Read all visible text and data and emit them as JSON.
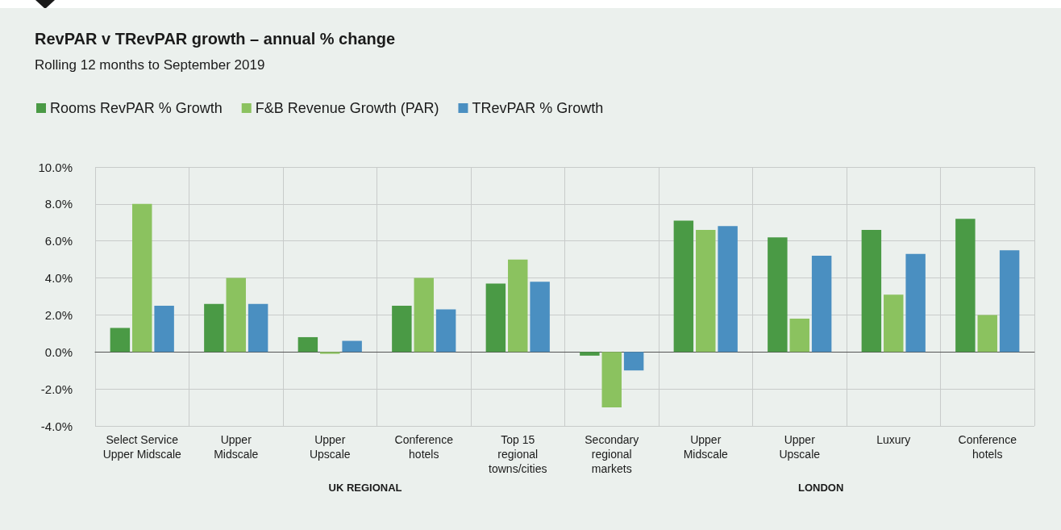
{
  "chart_data": {
    "type": "bar",
    "title": "RevPAR v TRevPAR growth – annual % change",
    "subtitle": "Rolling 12 months to September 2019",
    "categories": [
      "Select Service\nUpper Midscale",
      "Upper\nMidscale",
      "Upper\nUpscale",
      "Conference\nhotels",
      "Top 15\nregional\ntowns/cities",
      "Secondary\nregional\nmarkets",
      "Upper\nMidscale",
      "Upper\nUpscale",
      "Luxury",
      "Conference\nhotels"
    ],
    "series": [
      {
        "name": "Rooms RevPAR % Growth",
        "color": "#4a9a45",
        "values": [
          1.3,
          2.6,
          0.8,
          2.5,
          3.7,
          -0.2,
          7.1,
          6.2,
          6.6,
          7.2
        ]
      },
      {
        "name": "F&B Revenue Growth (PAR)",
        "color": "#8bc25f",
        "values": [
          8.0,
          4.0,
          -0.1,
          4.0,
          5.0,
          -3.0,
          6.6,
          1.8,
          3.1,
          2.0
        ]
      },
      {
        "name": "TRevPAR % Growth",
        "color": "#4a8fc1",
        "values": [
          2.5,
          2.6,
          0.6,
          2.3,
          3.8,
          -1.0,
          6.8,
          5.2,
          5.3,
          5.5
        ]
      }
    ],
    "ylim": [
      -4,
      10
    ],
    "yticks": [
      {
        "value": -4,
        "label": "-4.0%"
      },
      {
        "value": -2,
        "label": "-2.0%"
      },
      {
        "value": 0,
        "label": "0.0%"
      },
      {
        "value": 2,
        "label": "2.0%"
      },
      {
        "value": 4,
        "label": "4.0%"
      },
      {
        "value": 6,
        "label": "6.0%"
      },
      {
        "value": 8,
        "label": "8.0%"
      },
      {
        "value": 10,
        "label": "10.0%"
      }
    ],
    "annotations": [
      "UK REGIONAL",
      "LONDON"
    ],
    "grid": true,
    "legend": "top left"
  }
}
